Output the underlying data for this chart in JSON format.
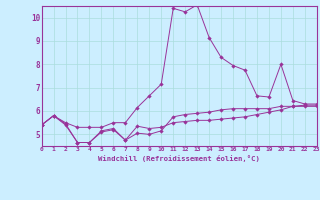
{
  "xlabel": "Windchill (Refroidissement éolien,°C)",
  "background_color": "#cceeff",
  "line_color": "#993399",
  "xlim": [
    0,
    23
  ],
  "ylim": [
    4.5,
    10.5
  ],
  "yticks": [
    5,
    6,
    7,
    8,
    9,
    10
  ],
  "xticks": [
    0,
    1,
    2,
    3,
    4,
    5,
    6,
    7,
    8,
    9,
    10,
    11,
    12,
    13,
    14,
    15,
    16,
    17,
    18,
    19,
    20,
    21,
    22,
    23
  ],
  "line1_x": [
    0,
    1,
    2,
    3,
    4,
    5,
    6,
    7,
    8,
    9,
    10,
    11,
    12,
    13,
    14,
    15,
    16,
    17,
    18,
    19,
    20,
    21,
    22,
    23
  ],
  "line1_y": [
    5.4,
    5.8,
    5.45,
    4.65,
    4.65,
    5.15,
    5.25,
    4.75,
    5.35,
    5.25,
    5.3,
    5.5,
    5.55,
    5.6,
    5.6,
    5.65,
    5.7,
    5.75,
    5.85,
    5.95,
    6.05,
    6.2,
    6.25,
    6.25
  ],
  "line2_x": [
    0,
    1,
    2,
    3,
    4,
    5,
    6,
    7,
    8,
    9,
    10,
    11,
    12,
    13,
    14,
    15,
    16,
    17,
    18,
    19,
    20,
    21,
    22,
    23
  ],
  "line2_y": [
    5.4,
    5.8,
    5.5,
    5.3,
    5.3,
    5.3,
    5.5,
    5.5,
    6.15,
    6.65,
    7.15,
    10.4,
    10.25,
    10.55,
    9.15,
    8.3,
    7.95,
    7.75,
    6.65,
    6.6,
    8.0,
    6.45,
    6.3,
    6.3
  ],
  "line3_x": [
    0,
    1,
    2,
    3,
    4,
    5,
    6,
    7,
    8,
    9,
    10,
    11,
    12,
    13,
    14,
    15,
    16,
    17,
    18,
    19,
    20,
    21,
    22,
    23
  ],
  "line3_y": [
    5.4,
    5.8,
    5.4,
    4.65,
    4.65,
    5.1,
    5.2,
    4.75,
    5.05,
    5.0,
    5.15,
    5.75,
    5.85,
    5.9,
    5.95,
    6.05,
    6.1,
    6.1,
    6.1,
    6.1,
    6.2,
    6.2,
    6.2,
    6.2
  ],
  "grid_color": "#aadddd",
  "marker": "D",
  "marker_size": 2.2,
  "line_width": 0.7
}
